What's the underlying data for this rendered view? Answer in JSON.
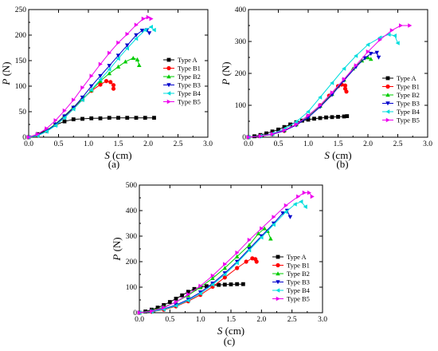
{
  "figure": {
    "captions": [
      "(a)",
      "(b)",
      "(c)"
    ]
  },
  "chart_data": [
    {
      "type": "line",
      "panel": "(a)",
      "xlabel_italic": "S",
      "xlabel_unit": " (cm)",
      "ylabel_italic": "P",
      "ylabel_unit": " (N)",
      "xlim": [
        0,
        3.0
      ],
      "ylim": [
        0,
        250
      ],
      "xticks": [
        "0.0",
        "0.5",
        "1.0",
        "1.5",
        "2.0",
        "2.5",
        "3.0"
      ],
      "yticks": [
        "0",
        "50",
        "100",
        "150",
        "200",
        "250"
      ],
      "legend_position": "right-middle",
      "series": [
        {
          "name": "Type A",
          "color": "#000000",
          "marker": "square",
          "x": [
            0,
            0.15,
            0.3,
            0.45,
            0.6,
            0.75,
            0.9,
            1.05,
            1.2,
            1.35,
            1.5,
            1.65,
            1.8,
            1.95,
            2.1
          ],
          "y": [
            0,
            6,
            14,
            24,
            31,
            35,
            36,
            37,
            37,
            38,
            38,
            38,
            38,
            38,
            38
          ]
        },
        {
          "name": "Type B1",
          "color": "#ff0000",
          "marker": "circle",
          "x": [
            0,
            0.15,
            0.3,
            0.45,
            0.6,
            0.75,
            0.9,
            1.05,
            1.2,
            1.3,
            1.37,
            1.42,
            1.42
          ],
          "y": [
            0,
            4,
            12,
            25,
            40,
            57,
            74,
            91,
            103,
            110,
            108,
            102,
            95
          ]
        },
        {
          "name": "Type B2",
          "color": "#00cc00",
          "marker": "triangle-up",
          "x": [
            0,
            0.15,
            0.3,
            0.45,
            0.6,
            0.75,
            0.9,
            1.05,
            1.2,
            1.35,
            1.5,
            1.62,
            1.75,
            1.82,
            1.85
          ],
          "y": [
            0,
            4,
            13,
            26,
            42,
            59,
            75,
            92,
            110,
            125,
            138,
            148,
            155,
            152,
            141
          ]
        },
        {
          "name": "Type B3",
          "color": "#0000cc",
          "marker": "triangle-down",
          "x": [
            0,
            0.15,
            0.3,
            0.45,
            0.6,
            0.75,
            0.9,
            1.05,
            1.2,
            1.35,
            1.5,
            1.65,
            1.8,
            1.9,
            1.98,
            2.02
          ],
          "y": [
            0,
            4,
            12,
            25,
            41,
            58,
            78,
            100,
            120,
            140,
            160,
            180,
            200,
            209,
            210,
            204
          ]
        },
        {
          "name": "Type B4",
          "color": "#00dddd",
          "marker": "triangle-left",
          "x": [
            0,
            0.15,
            0.3,
            0.45,
            0.6,
            0.75,
            0.9,
            1.05,
            1.2,
            1.35,
            1.5,
            1.65,
            1.8,
            1.95,
            2.05,
            2.1
          ],
          "y": [
            0,
            3,
            11,
            23,
            38,
            55,
            73,
            93,
            113,
            133,
            154,
            174,
            193,
            210,
            216,
            210
          ]
        },
        {
          "name": "Type B5",
          "color": "#ee00ee",
          "marker": "triangle-right",
          "x": [
            0,
            0.15,
            0.3,
            0.45,
            0.6,
            0.75,
            0.9,
            1.05,
            1.2,
            1.35,
            1.5,
            1.65,
            1.8,
            1.92,
            2.0,
            2.05
          ],
          "y": [
            0,
            6,
            17,
            33,
            52,
            73,
            97,
            120,
            143,
            165,
            185,
            202,
            220,
            232,
            235,
            232
          ]
        }
      ]
    },
    {
      "type": "line",
      "panel": "(b)",
      "xlabel_italic": "S",
      "xlabel_unit": " (cm)",
      "ylabel_italic": "P",
      "ylabel_unit": " (N)",
      "xlim": [
        0,
        3.0
      ],
      "ylim": [
        0,
        400
      ],
      "xticks": [
        "0.0",
        "0.5",
        "1.0",
        "1.5",
        "2.0",
        "2.5",
        "3.0"
      ],
      "yticks": [
        "0",
        "100",
        "200",
        "300",
        "400"
      ],
      "legend_position": "right-middle",
      "series": [
        {
          "name": "Type A",
          "color": "#000000",
          "marker": "square",
          "x": [
            0,
            0.1,
            0.2,
            0.3,
            0.4,
            0.5,
            0.6,
            0.7,
            0.8,
            0.9,
            1.0,
            1.1,
            1.2,
            1.3,
            1.4,
            1.5,
            1.6,
            1.65
          ],
          "y": [
            0,
            3,
            7,
            12,
            18,
            24,
            32,
            40,
            47,
            52,
            55,
            58,
            60,
            62,
            63,
            64,
            65,
            66
          ]
        },
        {
          "name": "Type B1",
          "color": "#ff0000",
          "marker": "circle",
          "x": [
            0,
            0.2,
            0.4,
            0.6,
            0.8,
            1.0,
            1.2,
            1.35,
            1.5,
            1.56,
            1.62,
            1.62,
            1.64
          ],
          "y": [
            0,
            4,
            10,
            20,
            40,
            66,
            100,
            130,
            160,
            165,
            162,
            152,
            143
          ]
        },
        {
          "name": "Type B2",
          "color": "#00cc00",
          "marker": "triangle-up",
          "x": [
            0,
            0.2,
            0.4,
            0.6,
            0.8,
            1.0,
            1.2,
            1.4,
            1.6,
            1.75,
            1.9,
            2.0,
            2.05
          ],
          "y": [
            0,
            3,
            10,
            22,
            40,
            66,
            98,
            135,
            180,
            215,
            240,
            250,
            245
          ]
        },
        {
          "name": "Type B3",
          "color": "#0000cc",
          "marker": "triangle-down",
          "x": [
            0,
            0.2,
            0.4,
            0.6,
            0.8,
            1.0,
            1.2,
            1.4,
            1.6,
            1.8,
            1.95,
            2.05,
            2.15,
            2.18
          ],
          "y": [
            0,
            3,
            9,
            20,
            38,
            62,
            95,
            133,
            178,
            220,
            248,
            262,
            265,
            250
          ]
        },
        {
          "name": "Type B4",
          "color": "#00dddd",
          "marker": "triangle-left",
          "x": [
            0,
            0.2,
            0.4,
            0.6,
            0.8,
            1.0,
            1.2,
            1.4,
            1.6,
            1.8,
            2.0,
            2.2,
            2.35,
            2.45,
            2.5
          ],
          "y": [
            0,
            4,
            11,
            26,
            48,
            80,
            125,
            170,
            215,
            255,
            290,
            312,
            322,
            318,
            295
          ]
        },
        {
          "name": "Type B5",
          "color": "#ee00ee",
          "marker": "triangle-right",
          "x": [
            0,
            0.2,
            0.4,
            0.6,
            0.8,
            1.0,
            1.2,
            1.4,
            1.6,
            1.8,
            2.0,
            2.2,
            2.4,
            2.55,
            2.7
          ],
          "y": [
            0,
            3,
            10,
            22,
            40,
            68,
            100,
            140,
            182,
            225,
            268,
            305,
            335,
            350,
            350
          ]
        }
      ]
    },
    {
      "type": "line",
      "panel": "(c)",
      "xlabel_italic": "S",
      "xlabel_unit": " (cm)",
      "ylabel_italic": "P",
      "ylabel_unit": " (N)",
      "xlim": [
        0,
        3.0
      ],
      "ylim": [
        0,
        500
      ],
      "xticks": [
        "0.0",
        "0.5",
        "1.0",
        "1.5",
        "2.0",
        "2.5",
        "3.0"
      ],
      "yticks": [
        "0",
        "100",
        "200",
        "300",
        "400",
        "500"
      ],
      "legend_position": "right-lower",
      "series": [
        {
          "name": "Type A",
          "color": "#000000",
          "marker": "square",
          "x": [
            0,
            0.1,
            0.2,
            0.3,
            0.4,
            0.5,
            0.6,
            0.7,
            0.8,
            0.9,
            1.0,
            1.1,
            1.2,
            1.3,
            1.4,
            1.5,
            1.6,
            1.7
          ],
          "y": [
            0,
            5,
            12,
            20,
            30,
            42,
            55,
            68,
            82,
            93,
            100,
            104,
            107,
            109,
            110,
            111,
            112,
            112
          ]
        },
        {
          "name": "Type B1",
          "color": "#ff0000",
          "marker": "circle",
          "x": [
            0,
            0.2,
            0.4,
            0.6,
            0.8,
            1.0,
            1.2,
            1.4,
            1.6,
            1.75,
            1.85,
            1.9,
            1.92
          ],
          "y": [
            0,
            4,
            12,
            25,
            45,
            70,
            102,
            138,
            175,
            200,
            213,
            210,
            200
          ]
        },
        {
          "name": "Type B2",
          "color": "#00cc00",
          "marker": "triangle-up",
          "x": [
            0,
            0.2,
            0.4,
            0.6,
            0.8,
            1.0,
            1.2,
            1.4,
            1.6,
            1.8,
            1.95,
            2.05,
            2.1,
            2.15
          ],
          "y": [
            0,
            8,
            22,
            42,
            68,
            100,
            135,
            175,
            220,
            265,
            310,
            330,
            320,
            290
          ]
        },
        {
          "name": "Type B3",
          "color": "#0000cc",
          "marker": "triangle-down",
          "x": [
            0,
            0.2,
            0.4,
            0.6,
            0.8,
            1.0,
            1.2,
            1.4,
            1.6,
            1.8,
            2.0,
            2.2,
            2.35,
            2.42,
            2.47
          ],
          "y": [
            0,
            5,
            15,
            30,
            52,
            80,
            115,
            155,
            200,
            250,
            300,
            350,
            390,
            400,
            375
          ]
        },
        {
          "name": "Type B4",
          "color": "#00dddd",
          "marker": "triangle-left",
          "x": [
            0,
            0.2,
            0.4,
            0.6,
            0.8,
            1.0,
            1.2,
            1.4,
            1.6,
            1.8,
            2.0,
            2.2,
            2.4,
            2.55,
            2.65,
            2.72
          ],
          "y": [
            0,
            4,
            13,
            27,
            48,
            75,
            110,
            150,
            195,
            245,
            295,
            345,
            395,
            425,
            435,
            415
          ]
        },
        {
          "name": "Type B5",
          "color": "#ee00ee",
          "marker": "triangle-right",
          "x": [
            0,
            0.2,
            0.4,
            0.6,
            0.8,
            1.0,
            1.2,
            1.4,
            1.6,
            1.8,
            2.0,
            2.2,
            2.4,
            2.6,
            2.7,
            2.78,
            2.83
          ],
          "y": [
            0,
            6,
            20,
            42,
            72,
            105,
            145,
            190,
            235,
            285,
            330,
            375,
            420,
            455,
            470,
            470,
            455
          ]
        }
      ]
    }
  ]
}
